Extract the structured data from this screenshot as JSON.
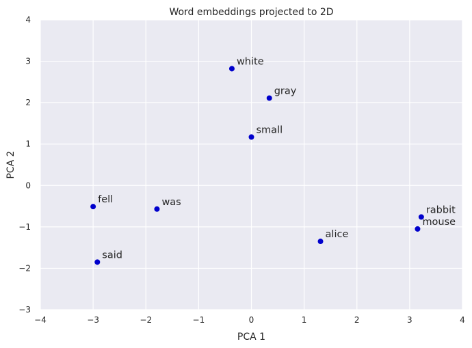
{
  "chart_data": {
    "type": "scatter",
    "title": "Word embeddings projected to 2D",
    "xlabel": "PCA 1",
    "ylabel": "PCA 2",
    "xlim": [
      -4,
      4
    ],
    "ylim": [
      -3,
      4
    ],
    "xticks": [
      -4,
      -3,
      -2,
      -1,
      0,
      1,
      2,
      3,
      4
    ],
    "yticks": [
      -3,
      -2,
      -1,
      0,
      1,
      2,
      3,
      4
    ],
    "xtick_labels": [
      "−4",
      "−3",
      "−2",
      "−1",
      "0",
      "1",
      "2",
      "3",
      "4"
    ],
    "ytick_labels": [
      "−3",
      "−2",
      "−1",
      "0",
      "1",
      "2",
      "3",
      "4"
    ],
    "grid": true,
    "point_color": "#0000cc",
    "background_color": "#eaeaf2",
    "points": [
      {
        "label": "white",
        "x": -0.37,
        "y": 2.82
      },
      {
        "label": "gray",
        "x": 0.34,
        "y": 2.11
      },
      {
        "label": "small",
        "x": 0.0,
        "y": 1.17
      },
      {
        "label": "fell",
        "x": -3.0,
        "y": -0.51
      },
      {
        "label": "was",
        "x": -1.79,
        "y": -0.57
      },
      {
        "label": "said",
        "x": -2.92,
        "y": -1.85
      },
      {
        "label": "alice",
        "x": 1.31,
        "y": -1.35
      },
      {
        "label": "rabbit",
        "x": 3.22,
        "y": -0.76
      },
      {
        "label": "mouse",
        "x": 3.15,
        "y": -1.05
      }
    ]
  }
}
